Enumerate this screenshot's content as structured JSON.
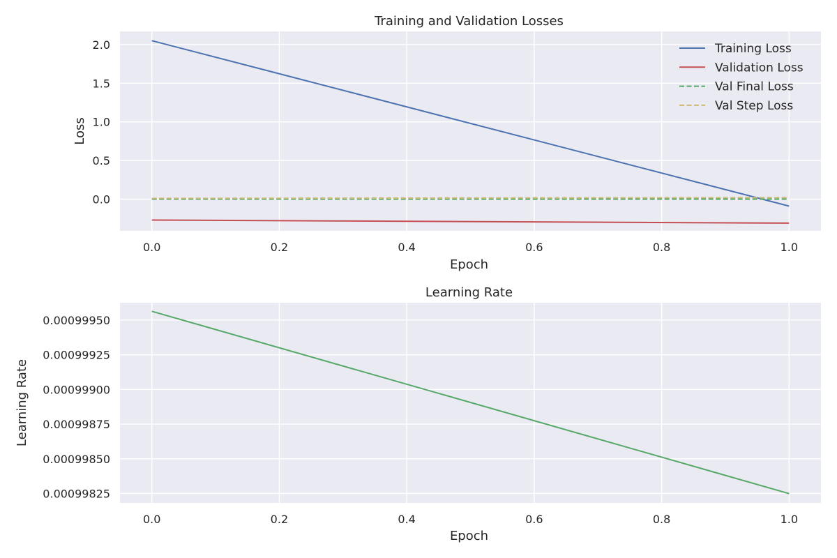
{
  "chart_data": [
    {
      "type": "line",
      "title": "Training and Validation Losses",
      "xlabel": "Epoch",
      "ylabel": "Loss",
      "x": [
        0.0,
        1.0
      ],
      "xlim": [
        -0.05,
        1.05
      ],
      "ylim": [
        -0.41,
        2.17
      ],
      "xticks": [
        0.0,
        0.2,
        0.4,
        0.6,
        0.8,
        1.0
      ],
      "yticks": [
        0.0,
        0.5,
        1.0,
        1.5,
        2.0
      ],
      "xtick_labels": [
        "0.0",
        "0.2",
        "0.4",
        "0.6",
        "0.8",
        "1.0"
      ],
      "ytick_labels": [
        "0.0",
        "0.5",
        "1.0",
        "1.5",
        "2.0"
      ],
      "grid": true,
      "legend_position": "top-right",
      "series": [
        {
          "name": "Training Loss",
          "values": [
            2.05,
            -0.09
          ],
          "color": "#4c72b0",
          "dash": "solid"
        },
        {
          "name": "Validation Loss",
          "values": [
            -0.27,
            -0.31
          ],
          "color": "#c44e52",
          "dash": "solid"
        },
        {
          "name": "Val Final Loss",
          "values": [
            0.0,
            0.0
          ],
          "color": "#55a868",
          "dash": "dashed"
        },
        {
          "name": "Val Step Loss",
          "values": [
            0.01,
            0.02
          ],
          "color": "#ccb974",
          "dash": "dashed"
        }
      ]
    },
    {
      "type": "line",
      "title": "Learning Rate",
      "xlabel": "Epoch",
      "ylabel": "Learning Rate",
      "x": [
        0.0,
        1.0
      ],
      "xlim": [
        -0.05,
        1.05
      ],
      "ylim": [
        0.000998182,
        0.000999625
      ],
      "xticks": [
        0.0,
        0.2,
        0.4,
        0.6,
        0.8,
        1.0
      ],
      "yticks": [
        0.00099825,
        0.0009985,
        0.00099875,
        0.000999,
        0.00099925,
        0.0009995
      ],
      "xtick_labels": [
        "0.0",
        "0.2",
        "0.4",
        "0.6",
        "0.8",
        "1.0"
      ],
      "ytick_labels": [
        "0.00099825",
        "0.00099850",
        "0.00099875",
        "0.00099900",
        "0.00099925",
        "0.00099950"
      ],
      "grid": true,
      "series": [
        {
          "values": [
            0.000999563,
            0.000998249
          ],
          "color": "#55a868",
          "dash": "solid"
        }
      ]
    }
  ]
}
